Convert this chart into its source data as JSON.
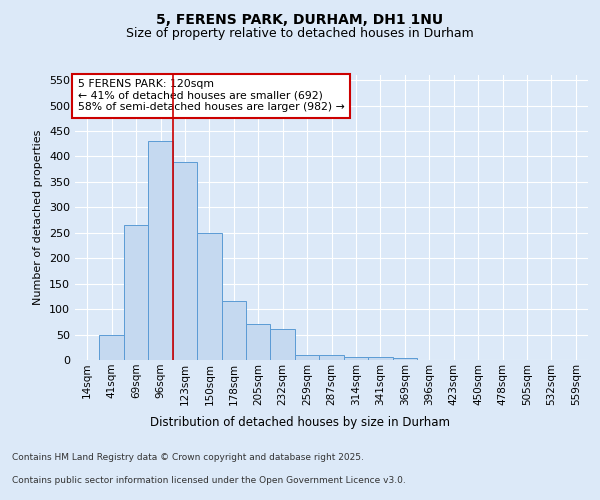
{
  "title_line1": "5, FERENS PARK, DURHAM, DH1 1NU",
  "title_line2": "Size of property relative to detached houses in Durham",
  "xlabel": "Distribution of detached houses by size in Durham",
  "ylabel": "Number of detached properties",
  "categories": [
    "14sqm",
    "41sqm",
    "69sqm",
    "96sqm",
    "123sqm",
    "150sqm",
    "178sqm",
    "205sqm",
    "232sqm",
    "259sqm",
    "287sqm",
    "314sqm",
    "341sqm",
    "369sqm",
    "396sqm",
    "423sqm",
    "450sqm",
    "478sqm",
    "505sqm",
    "532sqm",
    "559sqm"
  ],
  "values": [
    0,
    50,
    265,
    430,
    390,
    250,
    115,
    70,
    60,
    10,
    10,
    5,
    5,
    3,
    0,
    0,
    0,
    0,
    0,
    0,
    0
  ],
  "bar_color": "#c5d9f0",
  "bar_edge_color": "#5b9bd5",
  "bar_edge_width": 0.7,
  "vline_color": "#cc0000",
  "vline_pos": 3.5,
  "annotation_title": "5 FERENS PARK: 120sqm",
  "annotation_line1": "← 41% of detached houses are smaller (692)",
  "annotation_line2": "58% of semi-detached houses are larger (982) →",
  "annotation_box_facecolor": "#ffffff",
  "annotation_box_edgecolor": "#cc0000",
  "ylim": [
    0,
    560
  ],
  "yticks": [
    0,
    50,
    100,
    150,
    200,
    250,
    300,
    350,
    400,
    450,
    500,
    550
  ],
  "background_color": "#dce9f8",
  "plot_bg_color": "#dce9f8",
  "grid_color": "#ffffff",
  "footer_line1": "Contains HM Land Registry data © Crown copyright and database right 2025.",
  "footer_line2": "Contains public sector information licensed under the Open Government Licence v3.0."
}
